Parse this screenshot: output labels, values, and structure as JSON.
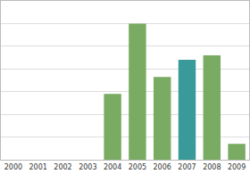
{
  "chart_data": {
    "type": "bar",
    "categories": [
      "2000",
      "2001",
      "2002",
      "2003",
      "2004",
      "2005",
      "2006",
      "2007",
      "2008",
      "2009"
    ],
    "values": [
      0,
      0,
      0,
      0,
      2.9,
      6.0,
      3.65,
      4.4,
      4.6,
      0.7
    ],
    "colors": [
      "#7aab63",
      "#7aab63",
      "#7aab63",
      "#7aab63",
      "#7aab63",
      "#7aab63",
      "#7aab63",
      "#3a9a9a",
      "#7aab63",
      "#7aab63"
    ],
    "ylim": [
      0,
      7
    ],
    "yticks": [
      0,
      1,
      2,
      3,
      4,
      5,
      6,
      7
    ],
    "grid": true,
    "tick_labels": "x"
  }
}
